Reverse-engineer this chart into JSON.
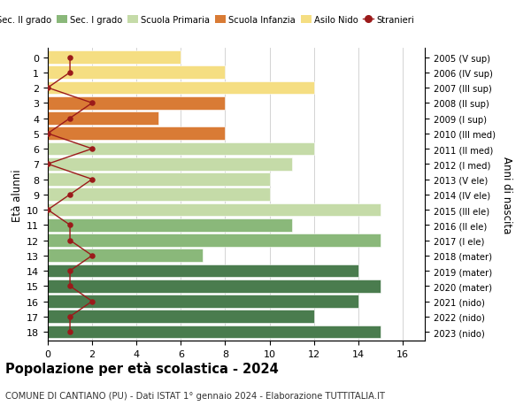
{
  "ages": [
    18,
    17,
    16,
    15,
    14,
    13,
    12,
    11,
    10,
    9,
    8,
    7,
    6,
    5,
    4,
    3,
    2,
    1,
    0
  ],
  "years": [
    "2005 (V sup)",
    "2006 (IV sup)",
    "2007 (III sup)",
    "2008 (II sup)",
    "2009 (I sup)",
    "2010 (III med)",
    "2011 (II med)",
    "2012 (I med)",
    "2013 (V ele)",
    "2014 (IV ele)",
    "2015 (III ele)",
    "2016 (II ele)",
    "2017 (I ele)",
    "2018 (mater)",
    "2019 (mater)",
    "2020 (mater)",
    "2021 (nido)",
    "2022 (nido)",
    "2023 (nido)"
  ],
  "bar_values": [
    15,
    12,
    14,
    15,
    14,
    7,
    15,
    11,
    15,
    10,
    10,
    11,
    12,
    8,
    5,
    8,
    12,
    8,
    6
  ],
  "bar_colors": [
    "#4a7c4e",
    "#4a7c4e",
    "#4a7c4e",
    "#4a7c4e",
    "#4a7c4e",
    "#8ab87a",
    "#8ab87a",
    "#8ab87a",
    "#c5dba8",
    "#c5dba8",
    "#c5dba8",
    "#c5dba8",
    "#c5dba8",
    "#d97b35",
    "#d97b35",
    "#d97b35",
    "#f5de82",
    "#f5de82",
    "#f5de82"
  ],
  "stranieri_values": [
    1,
    1,
    2,
    1,
    1,
    2,
    1,
    1,
    0,
    1,
    2,
    0,
    2,
    0,
    1,
    2,
    0,
    1,
    1
  ],
  "stranieri_color": "#9b1a1a",
  "legend_labels": [
    "Sec. II grado",
    "Sec. I grado",
    "Scuola Primaria",
    "Scuola Infanzia",
    "Asilo Nido",
    "Stranieri"
  ],
  "legend_colors": [
    "#4a7c4e",
    "#8ab87a",
    "#c5dba8",
    "#d97b35",
    "#f5de82",
    "#9b1a1a"
  ],
  "ylabel_left": "Età alunni",
  "ylabel_right": "Anni di nascita",
  "title": "Popolazione per età scolastica - 2024",
  "subtitle": "COMUNE DI CANTIANO (PU) - Dati ISTAT 1° gennaio 2024 - Elaborazione TUTTITALIA.IT",
  "xlim": [
    0,
    17
  ],
  "xticks": [
    0,
    2,
    4,
    6,
    8,
    10,
    12,
    14,
    16
  ],
  "bg_color": "#ffffff",
  "grid_color": "#cccccc"
}
